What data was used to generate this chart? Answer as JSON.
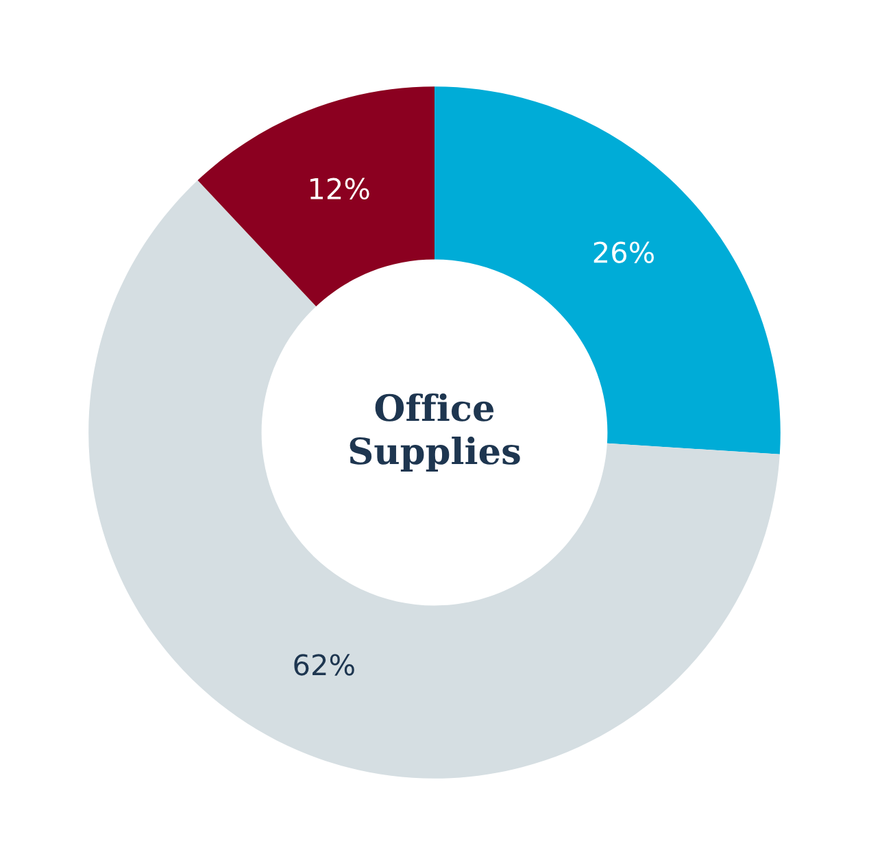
{
  "chart_data": {
    "type": "donut",
    "title": "Office\nSupplies",
    "categories": [
      null,
      null,
      null
    ],
    "values": [
      26,
      62,
      12
    ],
    "colors": [
      "#00acd7",
      "#d5dee2",
      "#8b0020"
    ],
    "value_labels": [
      "26%",
      "62%",
      "12%"
    ],
    "legend": false
  }
}
